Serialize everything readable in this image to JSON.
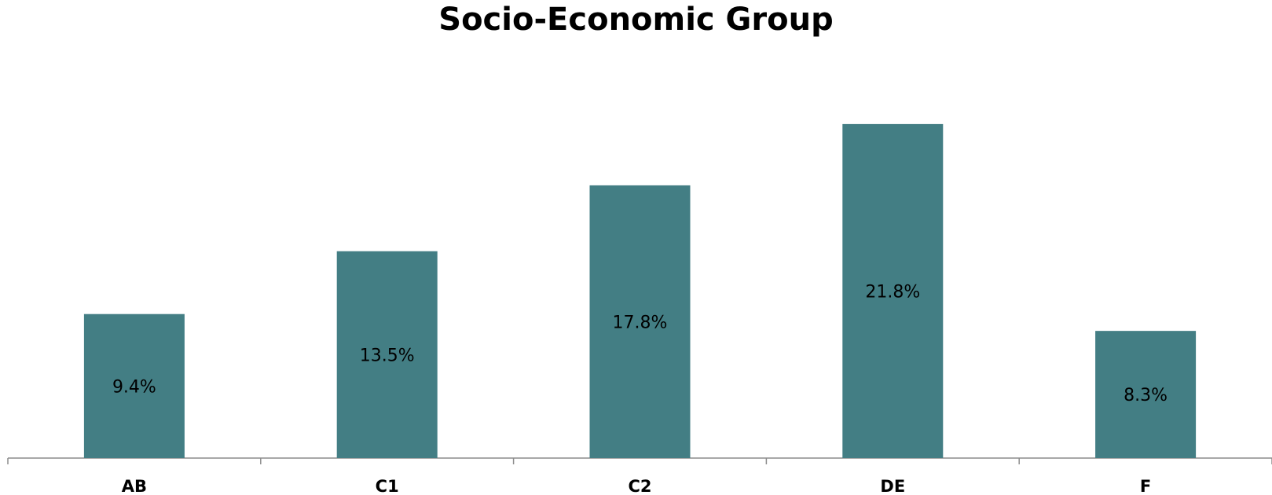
{
  "chart_data": {
    "type": "bar",
    "title": "Socio-Economic Group",
    "xlabel": "",
    "ylabel": "",
    "categories": [
      "AB",
      "C1",
      "C2",
      "DE",
      "F"
    ],
    "values": [
      9.4,
      13.5,
      17.8,
      21.8,
      8.3
    ],
    "value_labels": [
      "9.4%",
      "13.5%",
      "17.8%",
      "21.8%",
      "8.3%"
    ],
    "bar_color": "#437E84",
    "grid": false,
    "legend": "none"
  }
}
